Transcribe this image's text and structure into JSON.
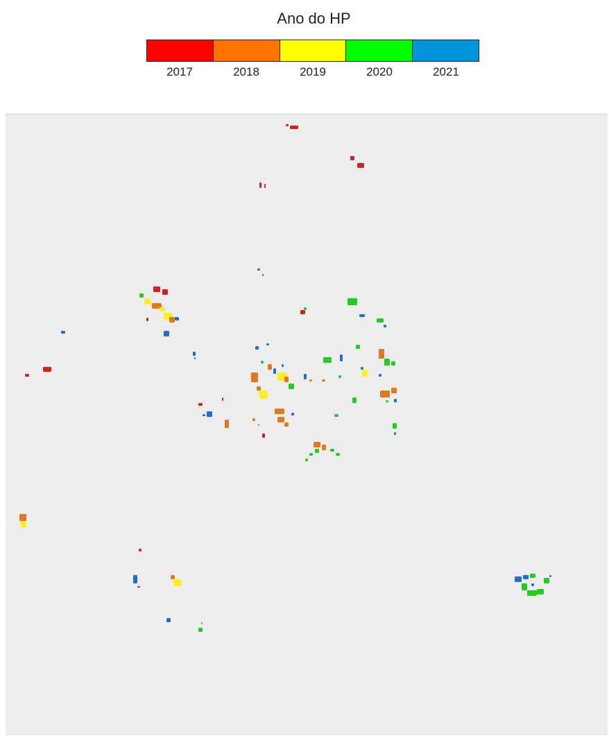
{
  "legend": {
    "title": "Ano do HP",
    "classes": [
      {
        "label": "2017",
        "color": "#ff0000"
      },
      {
        "label": "2018",
        "color": "#ff7300"
      },
      {
        "label": "2019",
        "color": "#ffff00"
      },
      {
        "label": "2020",
        "color": "#00ff00"
      },
      {
        "label": "2021",
        "color": "#0096dc"
      }
    ]
  },
  "map": {
    "background_color": "#ededed",
    "patch_colors": {
      "2017": "#d81e1e",
      "2018": "#dd7a1e",
      "2019": "#ffee22",
      "2020": "#22cc22",
      "2021": "#1f6fd0"
    }
  }
}
